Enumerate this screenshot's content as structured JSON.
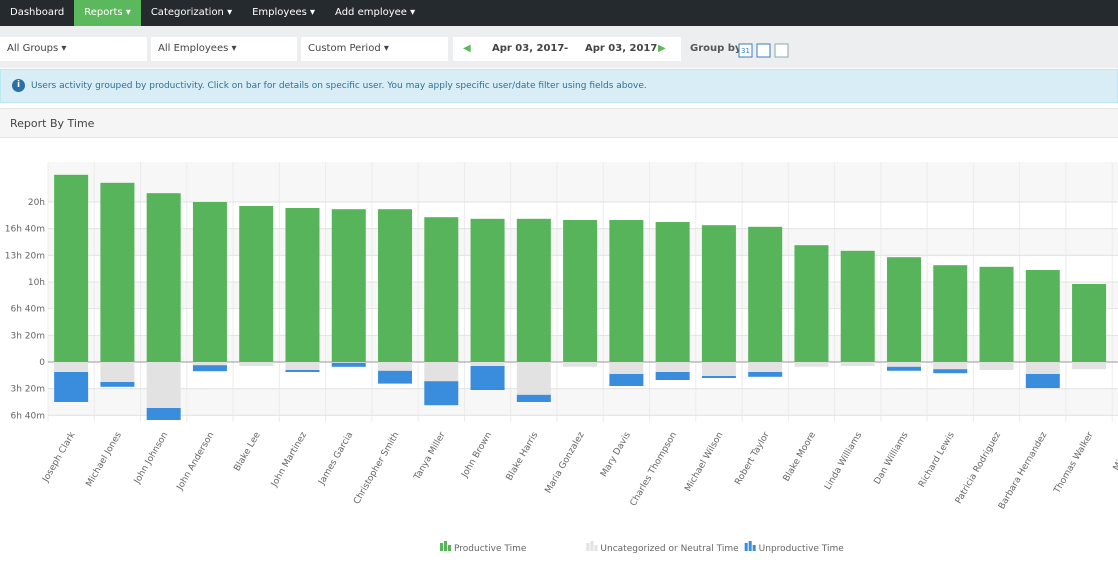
{
  "nav": {
    "items": [
      "Dashboard",
      "Reports",
      "Categorization",
      "Employees",
      "Add employee"
    ],
    "active": 1
  },
  "filters": {
    "group": "All Groups",
    "employees": "All Employees",
    "period": "Custom Period",
    "date_from": "Apr 03, 2017",
    "separator": "-",
    "date_to": "Apr 03, 2017",
    "group_by": "Group by:",
    "calendar_day": "31"
  },
  "info": "Users activity grouped by productivity. Click on bar for details on specific user. You may apply specific user/date filter using fields above.",
  "section_title": "Report By Time",
  "chart_data": {
    "type": "bar",
    "stacked": true,
    "grid": true,
    "categories": [
      "Joseph Clark",
      "Michael Jones",
      "John Johnson",
      "John Anderson",
      "Blake Lee",
      "John Martinez",
      "James Garcia",
      "Christopher Smith",
      "Tanya Miller",
      "John Brown",
      "Blake Harris",
      "Maria Gonzalez",
      "Mary Davis",
      "Charles Thompson",
      "Michael Wilson",
      "Robert Taylor",
      "Blake Moore",
      "Linda Williams",
      "Dan Williams",
      "Richard Lewis",
      "Patricia Rodriguez",
      "Barbara Hernandez",
      "Thomas Walker",
      "Michael T"
    ],
    "series": [
      {
        "name": "Productive Time",
        "color": "#57b45a",
        "values": [
          23.4,
          22.4,
          21.1,
          20,
          19.5,
          19.25,
          19.1,
          19.1,
          18.1,
          17.9,
          17.9,
          17.75,
          17.75,
          17.5,
          17.1,
          16.9,
          14.6,
          13.9,
          13.1,
          12.1,
          11.9,
          11.5,
          9.75,
          null
        ]
      },
      {
        "name": "Uncategorized or Neutral Time",
        "color": "#e2e2e2",
        "values": [
          -1.25,
          -2.5,
          -5.75,
          -0.4,
          -0.5,
          -1.0,
          -0.1,
          -1.1,
          -2.4,
          -0.5,
          -4.1,
          -0.6,
          -1.5,
          -1.25,
          -1.75,
          -1.25,
          -0.6,
          -0.5,
          -0.6,
          -0.9,
          -1.0,
          -1.5,
          -0.9,
          null
        ]
      },
      {
        "name": "Unproductive Time",
        "color": "#3a8ddc",
        "values": [
          -3.75,
          -0.6,
          -1.5,
          -0.75,
          0,
          -0.25,
          -0.5,
          -1.6,
          -3.0,
          -3.0,
          -0.9,
          0,
          -1.5,
          -1.0,
          -0.25,
          -0.6,
          0,
          0,
          -0.5,
          -0.5,
          0,
          -1.75,
          0,
          null
        ]
      }
    ],
    "ylim": [
      -7.5,
      25
    ],
    "yticks": [
      {
        "value": -6.6667,
        "label": "6h 40m"
      },
      {
        "value": -3.3333,
        "label": "3h 20m"
      },
      0,
      {
        "value": 3.3333,
        "label": "3h 20m"
      },
      {
        "value": 6.6667,
        "label": "6h 40m"
      },
      {
        "value": 10,
        "label": "10h"
      },
      {
        "value": 13.3333,
        "label": "13h 20m"
      },
      {
        "value": 16.6667,
        "label": "16h 40m"
      },
      {
        "value": 20,
        "label": "20h"
      }
    ]
  }
}
